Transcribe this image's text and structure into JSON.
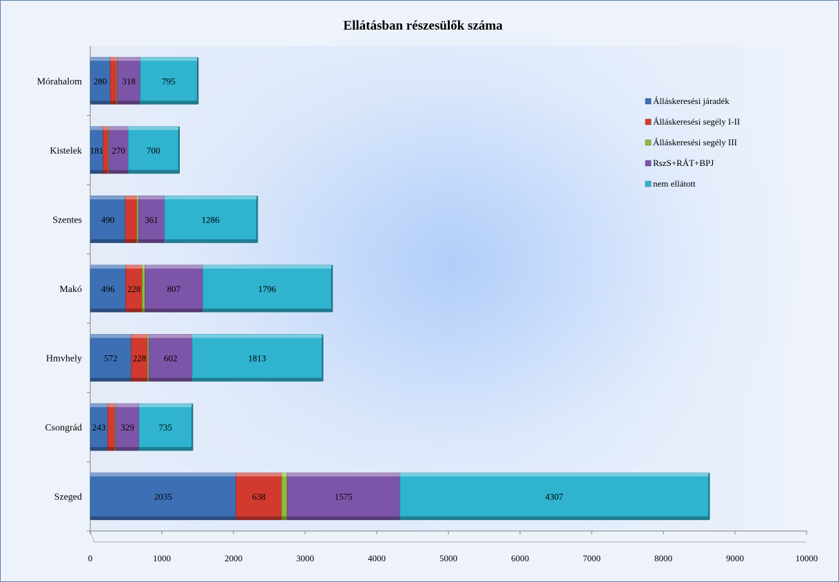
{
  "chart_data": {
    "type": "bar",
    "orientation": "horizontal",
    "stacked": true,
    "title": "Ellátásban részesülők száma",
    "categories": [
      "Szeged",
      "Csongrád",
      "Hmvhely",
      "Makó",
      "Szentes",
      "Kistelek",
      "Mórahalom"
    ],
    "series": [
      {
        "name": "Álláskeresési járadék",
        "color": "#3d6fb5",
        "values": [
          2035,
          243,
          572,
          496,
          490,
          181,
          280
        ],
        "labels": [
          "2035",
          "243",
          "572",
          "496",
          "490",
          "181",
          "280"
        ]
      },
      {
        "name": "Álláskeresési segély I-II",
        "color": "#d23a30",
        "values": [
          638,
          100,
          228,
          228,
          160,
          70,
          90
        ],
        "labels": [
          "638",
          "",
          "228",
          "228",
          "",
          "",
          ""
        ]
      },
      {
        "name": "Álláskeresési segély III",
        "color": "#8fbc3a",
        "values": [
          75,
          10,
          20,
          40,
          25,
          10,
          10
        ],
        "labels": [
          "",
          "",
          "",
          "",
          "",
          "",
          ""
        ]
      },
      {
        "name": "RszS+RÁT+BPJ",
        "color": "#7d55a8",
        "values": [
          1575,
          329,
          602,
          807,
          361,
          270,
          318
        ],
        "labels": [
          "1575",
          "329",
          "602",
          "807",
          "361",
          "270",
          "318"
        ]
      },
      {
        "name": "nem ellátott",
        "color": "#2fb3cf",
        "values": [
          4307,
          735,
          1813,
          1796,
          1286,
          700,
          795
        ],
        "labels": [
          "4307",
          "735",
          "1813",
          "1796",
          "1286",
          "700",
          "795"
        ]
      }
    ],
    "xlim": [
      0,
      10000
    ],
    "xticks": [
      "0",
      "1000",
      "2000",
      "3000",
      "4000",
      "5000",
      "6000",
      "7000",
      "8000",
      "9000",
      "10000"
    ],
    "legend_position": "right",
    "grid": false
  }
}
